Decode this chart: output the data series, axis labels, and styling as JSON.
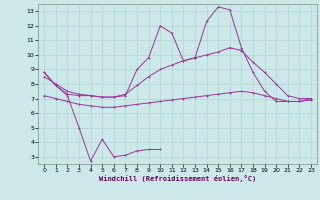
{
  "xlabel": "Windchill (Refroidissement éolien,°C)",
  "bg_color": "#cce8e8",
  "grid_color": "#b0d4d4",
  "line_color": "#993399",
  "xlim": [
    -0.5,
    23.5
  ],
  "ylim": [
    2.5,
    13.5
  ],
  "xticks": [
    0,
    1,
    2,
    3,
    4,
    5,
    6,
    7,
    8,
    9,
    10,
    11,
    12,
    13,
    14,
    15,
    16,
    17,
    18,
    19,
    20,
    21,
    22,
    23
  ],
  "yticks": [
    3,
    4,
    5,
    6,
    7,
    8,
    9,
    10,
    11,
    12,
    13
  ],
  "line1_x": [
    0,
    1,
    2,
    3,
    4,
    5,
    6,
    7,
    8,
    9,
    10
  ],
  "line1_y": [
    8.8,
    7.9,
    7.2,
    5.0,
    2.7,
    4.2,
    3.0,
    3.1,
    3.4,
    3.5,
    3.5
  ],
  "line2_x": [
    0,
    1,
    2,
    3,
    4,
    5,
    6,
    7,
    8,
    9,
    10,
    11,
    12,
    13,
    14,
    15,
    16,
    17,
    18,
    19,
    20,
    21,
    22,
    23
  ],
  "line2_y": [
    8.8,
    7.9,
    7.3,
    7.2,
    7.2,
    7.1,
    7.1,
    7.2,
    9.0,
    9.8,
    12.0,
    11.5,
    9.6,
    9.8,
    12.3,
    13.3,
    13.1,
    10.5,
    8.8,
    7.5,
    6.8,
    6.8,
    6.8,
    7.0
  ],
  "line3_x": [
    0,
    1,
    2,
    3,
    4,
    5,
    6,
    7,
    8,
    9,
    10,
    11,
    12,
    13,
    14,
    15,
    16,
    17,
    18,
    19,
    20,
    21,
    22,
    23
  ],
  "line3_y": [
    8.5,
    8.0,
    7.5,
    7.3,
    7.2,
    7.1,
    7.1,
    7.3,
    7.9,
    8.5,
    9.0,
    9.3,
    9.6,
    9.8,
    10.0,
    10.2,
    10.5,
    10.3,
    9.5,
    8.8,
    8.0,
    7.2,
    7.0,
    7.0
  ],
  "line4_x": [
    0,
    1,
    2,
    3,
    4,
    5,
    6,
    7,
    8,
    9,
    10,
    11,
    12,
    13,
    14,
    15,
    16,
    17,
    18,
    19,
    20,
    21,
    22,
    23
  ],
  "line4_y": [
    7.2,
    7.0,
    6.8,
    6.6,
    6.5,
    6.4,
    6.4,
    6.5,
    6.6,
    6.7,
    6.8,
    6.9,
    7.0,
    7.1,
    7.2,
    7.3,
    7.4,
    7.5,
    7.4,
    7.2,
    7.0,
    6.8,
    6.8,
    6.9
  ]
}
